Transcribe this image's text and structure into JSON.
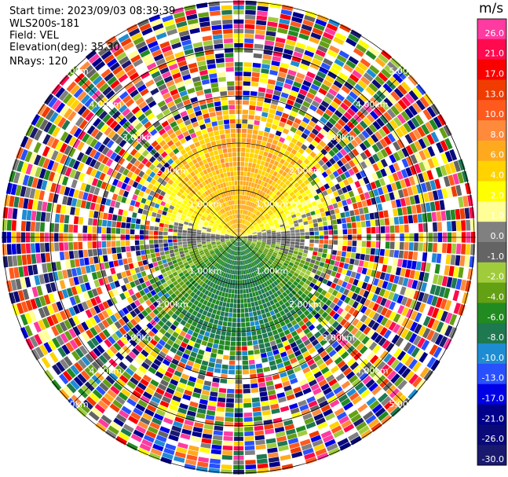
{
  "header": {
    "start_time": "Start time: 2023/09/03 08:39:39",
    "instrument": "WLS200s-181",
    "field": "Field: VEL",
    "elevation": "Elevation(deg): 35.30",
    "nrays": "NRays: 120"
  },
  "chart_data": {
    "type": "heatmap",
    "projection": "polar-ppi",
    "nrays": 120,
    "range_rings_km": [
      1,
      2,
      3,
      4,
      5
    ],
    "range_labels": [
      "1.00km",
      "2.00km",
      "3.00km",
      "4.00km",
      "5.00km"
    ],
    "colorbar": {
      "unit": "m/s",
      "ticks": [
        "26.0",
        "21.0",
        "17.0",
        "13.0",
        "10.0",
        "8.0",
        "6.0",
        "4.0",
        "2.0",
        "1.0",
        "0.0",
        "-1.0",
        "-2.0",
        "-4.0",
        "-6.0",
        "-8.0",
        "-10.0",
        "-13.0",
        "-17.0",
        "-21.0",
        "-26.0",
        "-30.0"
      ],
      "colors": [
        "#ff3aa0",
        "#ff0a4e",
        "#fa0000",
        "#f03c00",
        "#ff5a1e",
        "#ff8a3c",
        "#ffaa1e",
        "#ffd200",
        "#ffff00",
        "#ffff96",
        "#808080",
        "#646464",
        "#a0cc3c",
        "#64a014",
        "#218b21",
        "#1e7850",
        "#1e8cd2",
        "#2850ff",
        "#0000e6",
        "#00008b",
        "#0a0a78",
        "#19196e"
      ]
    },
    "pattern": {
      "description_free": true,
      "approach_sector_deg": [
        270,
        90
      ],
      "approach_values": [
        2.0,
        6.0,
        8.0
      ],
      "recede_sector_deg": [
        90,
        270
      ],
      "recede_values": [
        -2.0,
        -6.0,
        -10.0
      ],
      "clean_range_km": [
        2.1,
        2.3,
        1.5
      ]
    }
  }
}
